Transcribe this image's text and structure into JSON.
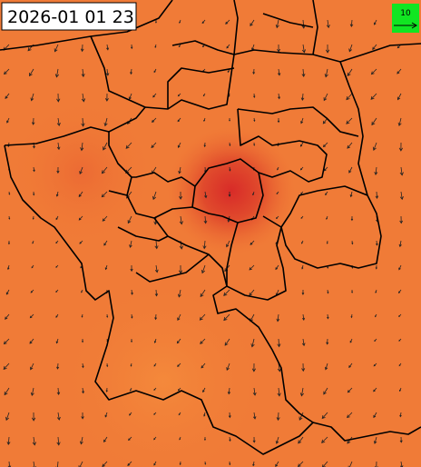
{
  "header": {
    "timestamp": "2026-01 01 23"
  },
  "legend": {
    "label": "10"
  }
}
